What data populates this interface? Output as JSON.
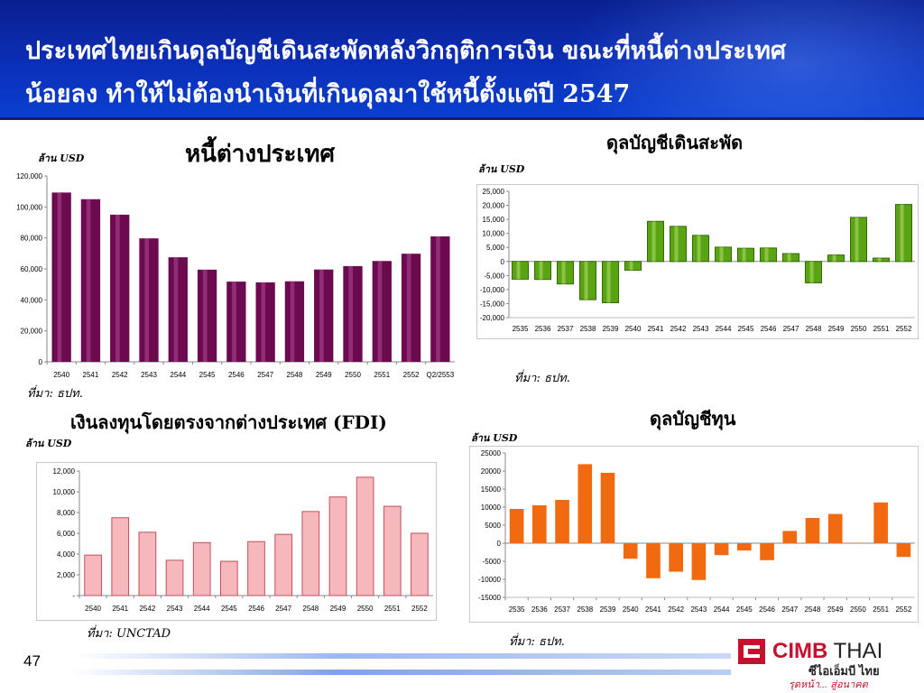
{
  "slide": {
    "title_line1": "ประเทศไทยเกินดุลบัญชีเดินสะพัดหลังวิกฤติการเงิน ขณะที่หนี้ต่างประเทศ",
    "title_line2": "น้อยลง ทำให้ไม่ต้องนำเงินที่เกินดุลมาใช้หนี้ตั้งแต่ปี 2547",
    "page_number": "47"
  },
  "logo": {
    "brand_main": "CIMB",
    "brand_second": " THAI",
    "thai_name": "ซีไอเอ็มบี ไทย",
    "slogan": "รุดหน้า... สู่อนาคต"
  },
  "colors": {
    "header": "#0b2fb8",
    "debt_bar": "#6b0a4f",
    "current_bar": "#5aa312",
    "fdi_bar": "#f7b8bd",
    "capital_bar": "#f26a10"
  },
  "chart_data": [
    {
      "id": "debt",
      "type": "bar",
      "title": "หนี้ต่างประเทศ",
      "unit": "ล้าน USD",
      "source": "ที่มา: ธปท.",
      "categories": [
        "2540",
        "2541",
        "2542",
        "2543",
        "2544",
        "2545",
        "2546",
        "2547",
        "2548",
        "2549",
        "2550",
        "2551",
        "2552",
        "Q2/2553"
      ],
      "values": [
        109300,
        105000,
        95000,
        79700,
        67500,
        59500,
        51800,
        51300,
        52000,
        59600,
        61800,
        65100,
        69800,
        81000
      ],
      "ylim": [
        0,
        120000
      ],
      "yticks": [
        0,
        20000,
        40000,
        60000,
        80000,
        100000,
        120000
      ],
      "ytick_labels": [
        "0",
        "20,000",
        "40,000",
        "60,000",
        "80,000",
        "100,000",
        "120,000"
      ]
    },
    {
      "id": "current",
      "type": "bar",
      "title": "ดุลบัญชีเดินสะพัด",
      "unit": "ล้าน USD",
      "source": "ที่มา: ธปท.",
      "categories": [
        "2535",
        "2536",
        "2537",
        "2538",
        "2539",
        "2540",
        "2541",
        "2542",
        "2543",
        "2544",
        "2545",
        "2546",
        "2547",
        "2548",
        "2549",
        "2550",
        "2551",
        "2552"
      ],
      "values": [
        -6300,
        -6400,
        -8000,
        -13600,
        -14700,
        -3100,
        14300,
        12500,
        9300,
        5100,
        4700,
        4800,
        2800,
        -7600,
        2300,
        15700,
        1200,
        20300
      ],
      "ylim": [
        -20000,
        25000
      ],
      "yticks": [
        -20000,
        -15000,
        -10000,
        -5000,
        0,
        5000,
        10000,
        15000,
        20000,
        25000
      ],
      "ytick_labels": [
        "-20,000",
        "-15,000",
        "-10,000",
        "-5,000",
        "0",
        "5,000",
        "10,000",
        "15,000",
        "20,000",
        "25,000"
      ]
    },
    {
      "id": "fdi",
      "type": "bar",
      "title": "เงินลงทุนโดยตรงจากต่างประเทศ (FDI)",
      "unit": "ล้าน USD",
      "source": "ที่มา: UNCTAD",
      "categories": [
        "2540",
        "2541",
        "2542",
        "2543",
        "2544",
        "2545",
        "2546",
        "2547",
        "2548",
        "2549",
        "2550",
        "2551",
        "2552"
      ],
      "values": [
        3900,
        7500,
        6100,
        3400,
        5100,
        3300,
        5200,
        5900,
        8100,
        9500,
        11400,
        8600,
        6000
      ],
      "ylim": [
        0,
        12000
      ],
      "yticks": [
        0,
        2000,
        4000,
        6000,
        8000,
        10000,
        12000
      ],
      "ytick_labels": [
        "-",
        "2,000",
        "4,000",
        "6,000",
        "8,000",
        "10,000",
        "12,000"
      ]
    },
    {
      "id": "capital",
      "type": "bar",
      "title": "ดุลบัญชีทุน",
      "unit": "ล้าน USD",
      "source": "ที่มา: ธปท.",
      "categories": [
        "2535",
        "2536",
        "2537",
        "2538",
        "2539",
        "2540",
        "2541",
        "2542",
        "2543",
        "2544",
        "2545",
        "2546",
        "2547",
        "2548",
        "2549",
        "2550",
        "2551",
        "2552"
      ],
      "values": [
        9500,
        10500,
        12000,
        21900,
        19500,
        -4300,
        -9700,
        -7900,
        -10200,
        -3300,
        -2000,
        -4700,
        3400,
        7000,
        8100,
        100,
        11300,
        -3800
      ],
      "ylim": [
        -15000,
        25000
      ],
      "yticks": [
        -15000,
        -10000,
        -5000,
        0,
        5000,
        10000,
        15000,
        20000,
        25000
      ],
      "ytick_labels": [
        "-15000",
        "-10000",
        "-5000",
        "0",
        "5000",
        "10000",
        "15000",
        "20000",
        "25000"
      ]
    }
  ]
}
